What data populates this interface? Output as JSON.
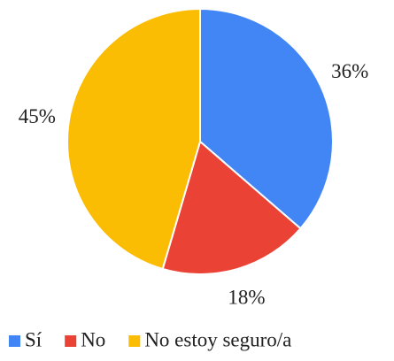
{
  "chart_data": {
    "type": "pie",
    "categories": [
      "Sí",
      "No",
      "No estoy seguro/a"
    ],
    "values": [
      36,
      18,
      45
    ],
    "value_labels": [
      "36%",
      "18%",
      "45%"
    ],
    "colors": [
      "#4285f4",
      "#ea4335",
      "#fbbc04"
    ],
    "legend": "bottom"
  }
}
